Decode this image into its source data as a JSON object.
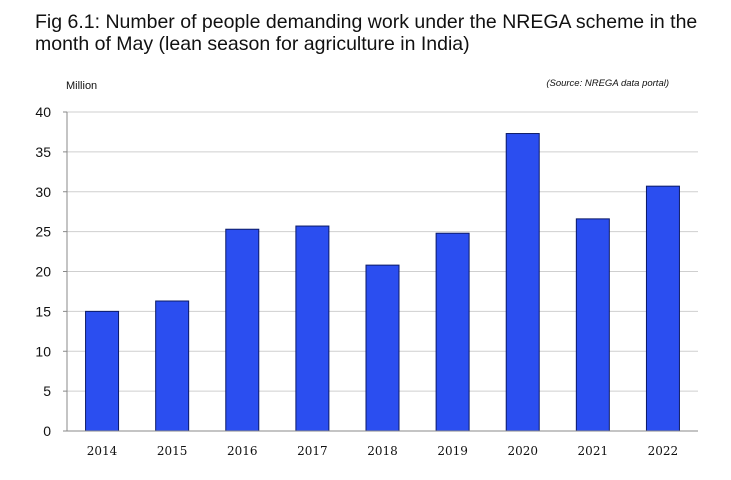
{
  "title": "Fig 6.1: Number of people demanding work under the NREGA scheme in the month of May (lean season for agriculture in India)",
  "unit_label": "Million",
  "source": "(Source: NREGA data portal)",
  "chart_data": {
    "type": "bar",
    "title": "Fig 6.1: Number of people demanding work under the NREGA scheme in the month of May (lean season for agriculture in India)",
    "xlabel": "",
    "ylabel": "Million",
    "categories": [
      "2014",
      "2015",
      "2016",
      "2017",
      "2018",
      "2019",
      "2020",
      "2021",
      "2022"
    ],
    "values": [
      15.0,
      16.3,
      25.3,
      25.7,
      20.8,
      24.8,
      37.3,
      26.6,
      30.7
    ],
    "ylim": [
      0,
      40
    ],
    "yticks": [
      0,
      5,
      10,
      15,
      20,
      25,
      30,
      35,
      40
    ],
    "grid": true,
    "legend": "none",
    "colors": {
      "bar": "#2b4ef0",
      "bar_edge": "#0b1a66",
      "grid": "#cfcfcf",
      "axis": "#888888"
    }
  }
}
